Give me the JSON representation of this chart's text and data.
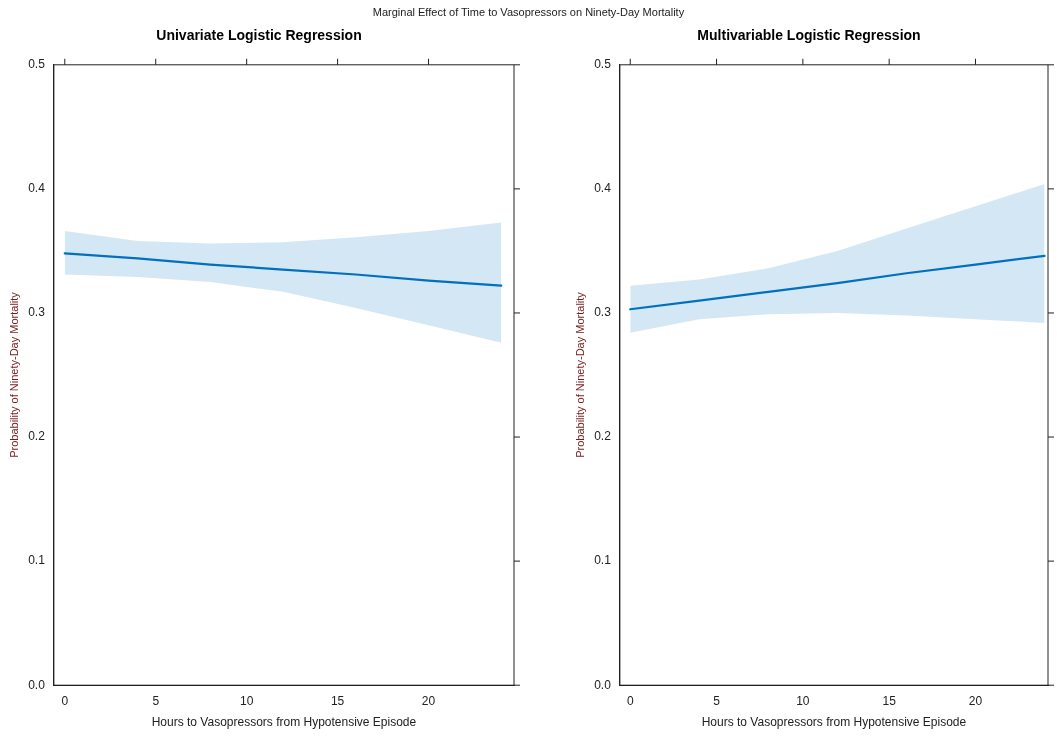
{
  "chart_data": [
    {
      "type": "line",
      "title": "Univariate Logistic Regression",
      "annotations": [
        "Marginal Effect of Time to Vasopressors on Ninety-Day Mortality"
      ],
      "xlabel": "Hours to Vasopressors from Hypotensive Episode",
      "ylabel": "Probability of Ninety-Day Mortality",
      "x": [
        0,
        4,
        8,
        12,
        16,
        20,
        24
      ],
      "series": [
        {
          "color": "#0070c0",
          "values": [
            0.348,
            0.344,
            0.339,
            0.335,
            0.331,
            0.326,
            0.322
          ],
          "lower": [
            0.331,
            0.329,
            0.325,
            0.317,
            0.304,
            0.29,
            0.276
          ],
          "upper": [
            0.366,
            0.358,
            0.356,
            0.357,
            0.361,
            0.366,
            0.373
          ]
        }
      ],
      "xlim": [
        -0.6,
        24.7
      ],
      "xticks": [
        0,
        5,
        10,
        15,
        20
      ],
      "ylim": [
        0,
        0.5
      ],
      "yticks": [
        {
          "value": 0,
          "label": "0.0"
        },
        0.1,
        0.2,
        0.3,
        0.4,
        0.5
      ],
      "grid": false,
      "legend": false,
      "marker": "none",
      "line_style": "solid"
    },
    {
      "type": "line",
      "title": "Multivariable Logistic Regression",
      "xlabel": "Hours to Vasopressors from Hypotensive Episode",
      "ylabel": "Probability of Ninety-Day Mortality",
      "x": [
        0,
        4,
        8,
        12,
        16,
        20,
        24
      ],
      "series": [
        {
          "color": "#0070c0",
          "values": [
            0.303,
            0.31,
            0.317,
            0.324,
            0.332,
            0.339,
            0.346
          ],
          "lower": [
            0.284,
            0.295,
            0.299,
            0.3,
            0.298,
            0.295,
            0.292
          ],
          "upper": [
            0.322,
            0.327,
            0.336,
            0.35,
            0.368,
            0.386,
            0.404
          ]
        }
      ],
      "xlim": [
        -0.6,
        24.2
      ],
      "xticks": [
        0,
        5,
        10,
        15,
        20
      ],
      "ylim": [
        0,
        0.5
      ],
      "yticks": [
        {
          "value": 0,
          "label": "0.0"
        },
        0.1,
        0.2,
        0.3,
        0.4,
        0.5
      ],
      "grid": false,
      "legend": false,
      "marker": "none",
      "line_style": "solid"
    }
  ]
}
